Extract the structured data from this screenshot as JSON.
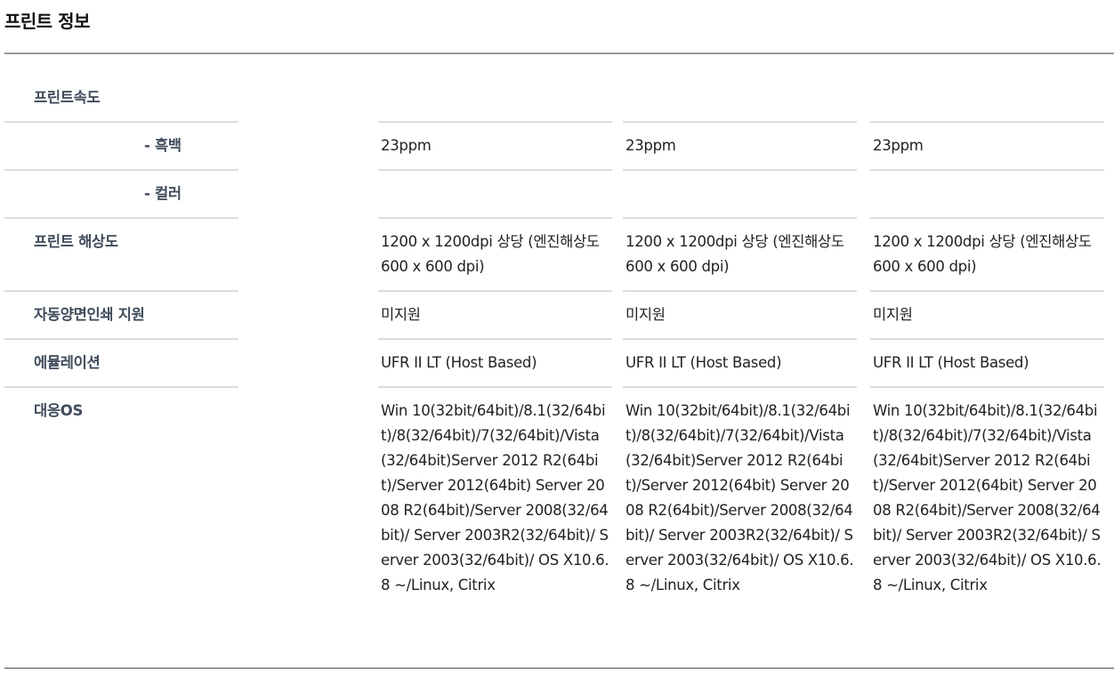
{
  "title": "프린트 정보",
  "rows": [
    {
      "label": "프린트속도",
      "sub": false,
      "values": [
        "",
        "",
        ""
      ]
    },
    {
      "label": "- 흑백",
      "sub": true,
      "values": [
        "23ppm",
        "23ppm",
        "23ppm"
      ]
    },
    {
      "label": "- 컬러",
      "sub": true,
      "values": [
        "",
        "",
        ""
      ]
    },
    {
      "label": "프린트 해상도",
      "sub": false,
      "values": [
        "1200 x 1200dpi 상당 (엔진해상도 600 x 600 dpi)",
        "1200 x 1200dpi 상당 (엔진해상도 600 x 600 dpi)",
        "1200 x 1200dpi 상당 (엔진해상도 600 x 600 dpi)"
      ]
    },
    {
      "label": "자동양면인쇄 지원",
      "sub": false,
      "values": [
        "미지원",
        "미지원",
        "미지원"
      ]
    },
    {
      "label": "에뮬레이션",
      "sub": false,
      "values": [
        "UFR II LT (Host Based)",
        "UFR II LT (Host Based)",
        "UFR II LT (Host Based)"
      ]
    },
    {
      "label": "대응OS",
      "sub": false,
      "values": [
        "Win 10(32bit/64bit)/8.1(32/64bit)/8(32/64bit)/7(32/64bit)/Vista(32/64bit)Server 2012 R2(64bit)/Server 2012(64bit) Server 2008 R2(64bit)/Server 2008(32/64bit)/ Server 2003R2(32/64bit)/ Server 2003(32/64bit)/ OS X10.6.8 ~/Linux, Citrix",
        "Win 10(32bit/64bit)/8.1(32/64bit)/8(32/64bit)/7(32/64bit)/Vista(32/64bit)Server 2012 R2(64bit)/Server 2012(64bit) Server 2008 R2(64bit)/Server 2008(32/64bit)/ Server 2003R2(32/64bit)/ Server 2003(32/64bit)/ OS X10.6.8 ~/Linux, Citrix",
        "Win 10(32bit/64bit)/8.1(32/64bit)/8(32/64bit)/7(32/64bit)/Vista(32/64bit)Server 2012 R2(64bit)/Server 2012(64bit) Server 2008 R2(64bit)/Server 2008(32/64bit)/ Server 2003R2(32/64bit)/ Server 2003(32/64bit)/ OS X10.6.8 ~/Linux, Citrix"
      ]
    }
  ]
}
